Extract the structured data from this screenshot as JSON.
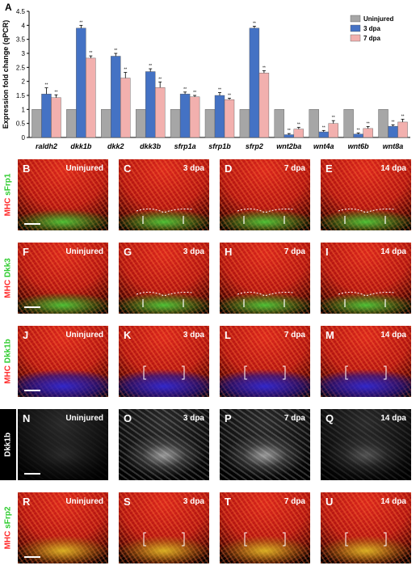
{
  "chart_data": {
    "type": "bar",
    "panel_label": "A",
    "ylabel": "Expression fold change (qPCR)",
    "ylim": [
      0,
      4.5
    ],
    "yticks": [
      "0",
      "0.5",
      "1",
      "1.5",
      "2",
      "2.5",
      "3",
      "3.5",
      "4",
      "4.5"
    ],
    "categories": [
      "raldh2",
      "dkk1b",
      "dkk2",
      "dkk3b",
      "sfrp1a",
      "sfrp1b",
      "sfrp2",
      "wnt2ba",
      "wnt4a",
      "wnt6b",
      "wnt8a"
    ],
    "series": [
      {
        "name": "Uninjured",
        "color": "#a6a6a6",
        "values": [
          1,
          1,
          1,
          1,
          1,
          1,
          1,
          1,
          1,
          1,
          1
        ]
      },
      {
        "name": "3 dpa",
        "color": "#4472c4",
        "values": [
          1.55,
          3.9,
          2.9,
          2.35,
          1.55,
          1.5,
          3.9,
          0.1,
          0.2,
          0.12,
          0.4
        ]
      },
      {
        "name": "7 dpa",
        "color": "#f2b0ae",
        "values": [
          1.42,
          2.83,
          2.12,
          1.78,
          1.45,
          1.35,
          2.3,
          0.3,
          0.5,
          0.32,
          0.55
        ]
      }
    ],
    "errors": [
      [
        0,
        0,
        0,
        0,
        0,
        0,
        0,
        0,
        0,
        0,
        0
      ],
      [
        0.22,
        0.1,
        0.1,
        0.1,
        0.07,
        0.1,
        0.07,
        0.04,
        0.05,
        0.04,
        0.05
      ],
      [
        0.1,
        0.08,
        0.2,
        0.2,
        0.05,
        0.05,
        0.08,
        0.06,
        0.1,
        0.07,
        0.1
      ]
    ],
    "significance": "**",
    "legend_position": "top-right",
    "grid": false
  },
  "panels": {
    "rows": [
      {
        "labels": [
          {
            "text": "MHC",
            "color": "red"
          },
          {
            "text": "sFrp1",
            "color": "green"
          }
        ],
        "cells": [
          {
            "letter": "B",
            "time": "Uninjured"
          },
          {
            "letter": "C",
            "time": "3 dpa"
          },
          {
            "letter": "D",
            "time": "7 dpa"
          },
          {
            "letter": "E",
            "time": "14 dpa"
          }
        ]
      },
      {
        "labels": [
          {
            "text": "MHC",
            "color": "red"
          },
          {
            "text": "Dkk3",
            "color": "green"
          }
        ],
        "cells": [
          {
            "letter": "F",
            "time": "Uninjured"
          },
          {
            "letter": "G",
            "time": "3 dpa"
          },
          {
            "letter": "H",
            "time": "7 dpa"
          },
          {
            "letter": "I",
            "time": "14 dpa"
          }
        ]
      },
      {
        "labels": [
          {
            "text": "MHC",
            "color": "red"
          },
          {
            "text": "Dkk1b",
            "color": "green"
          }
        ],
        "cells": [
          {
            "letter": "J",
            "time": "Uninjured"
          },
          {
            "letter": "K",
            "time": "3 dpa"
          },
          {
            "letter": "L",
            "time": "7 dpa"
          },
          {
            "letter": "M",
            "time": "14 dpa"
          }
        ]
      },
      {
        "labels": [
          {
            "text": "Dkk1b",
            "color": "white"
          }
        ],
        "cells": [
          {
            "letter": "N",
            "time": "Uninjured"
          },
          {
            "letter": "O",
            "time": "3 dpa"
          },
          {
            "letter": "P",
            "time": "7 dpa"
          },
          {
            "letter": "Q",
            "time": "14 dpa"
          }
        ]
      },
      {
        "labels": [
          {
            "text": "MHC",
            "color": "red"
          },
          {
            "text": "sFrp2",
            "color": "green"
          }
        ],
        "cells": [
          {
            "letter": "R",
            "time": "Uninjured"
          },
          {
            "letter": "S",
            "time": "3 dpa"
          },
          {
            "letter": "T",
            "time": "7 dpa"
          },
          {
            "letter": "U",
            "time": "14 dpa"
          }
        ]
      }
    ]
  }
}
